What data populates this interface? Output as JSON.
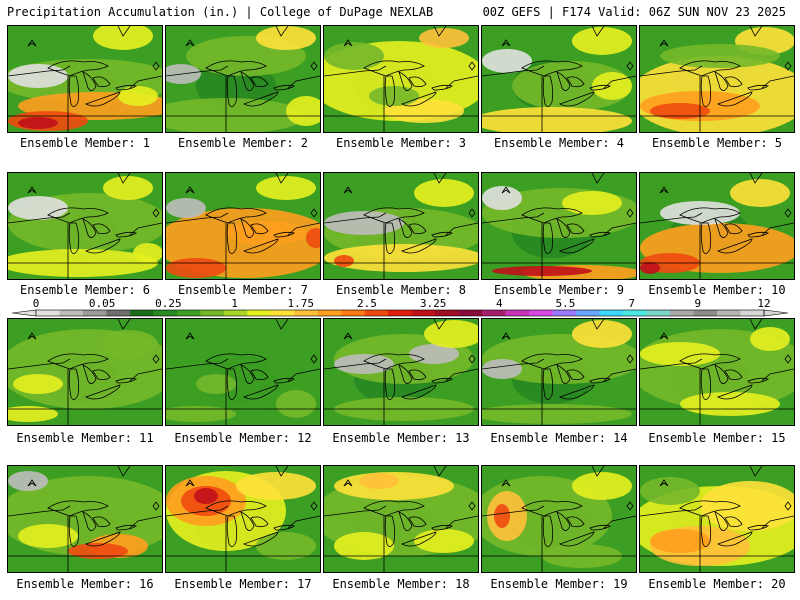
{
  "header": {
    "left": "Precipitation Accumulation (in.) | College of DuPage NEXLAB",
    "right": "00Z GEFS | F174 Valid: 06Z SUN NOV 23 2025"
  },
  "member_label_prefix": "Ensemble Member: ",
  "members": [
    {
      "id": 1,
      "label": "Ensemble Member: 1"
    },
    {
      "id": 2,
      "label": "Ensemble Member: 2"
    },
    {
      "id": 3,
      "label": "Ensemble Member: 3"
    },
    {
      "id": 4,
      "label": "Ensemble Member: 4"
    },
    {
      "id": 5,
      "label": "Ensemble Member: 5"
    },
    {
      "id": 6,
      "label": "Ensemble Member: 6"
    },
    {
      "id": 7,
      "label": "Ensemble Member: 7"
    },
    {
      "id": 8,
      "label": "Ensemble Member: 8"
    },
    {
      "id": 9,
      "label": "Ensemble Member: 9"
    },
    {
      "id": 10,
      "label": "Ensemble Member: 10"
    },
    {
      "id": 11,
      "label": "Ensemble Member: 11"
    },
    {
      "id": 12,
      "label": "Ensemble Member: 12"
    },
    {
      "id": 13,
      "label": "Ensemble Member: 13"
    },
    {
      "id": 14,
      "label": "Ensemble Member: 14"
    },
    {
      "id": 15,
      "label": "Ensemble Member: 15"
    },
    {
      "id": 16,
      "label": "Ensemble Member: 16"
    },
    {
      "id": 17,
      "label": "Ensemble Member: 17"
    },
    {
      "id": 18,
      "label": "Ensemble Member: 18"
    },
    {
      "id": 19,
      "label": "Ensemble Member: 19"
    },
    {
      "id": 20,
      "label": "Ensemble Member: 20"
    }
  ],
  "colorbar": {
    "tick_labels": [
      "0",
      "0.05",
      "0.25",
      "1",
      "1.75",
      "2.5",
      "3.25",
      "4",
      "5.5",
      "7",
      "9",
      "12"
    ],
    "colors": [
      "#e0e0e0",
      "#bdbdbd",
      "#9a9a9a",
      "#6f6f6f",
      "#1a6e1a",
      "#2a8a22",
      "#3c9e22",
      "#74b82a",
      "#a8d42a",
      "#e6f020",
      "#ffe13a",
      "#ffc03a",
      "#ff9f1e",
      "#ff7a14",
      "#f04a10",
      "#e01c10",
      "#c0101a",
      "#a00c22",
      "#8a0a3a",
      "#a81e6e",
      "#c832b4",
      "#d84ae6",
      "#9a7aff",
      "#6aa6ff",
      "#3cd8ff",
      "#4ce8e4",
      "#7ad6c6",
      "#a8a8a8",
      "#8c8c8c",
      "#b4b4b4",
      "#d6d6d6"
    ]
  }
}
